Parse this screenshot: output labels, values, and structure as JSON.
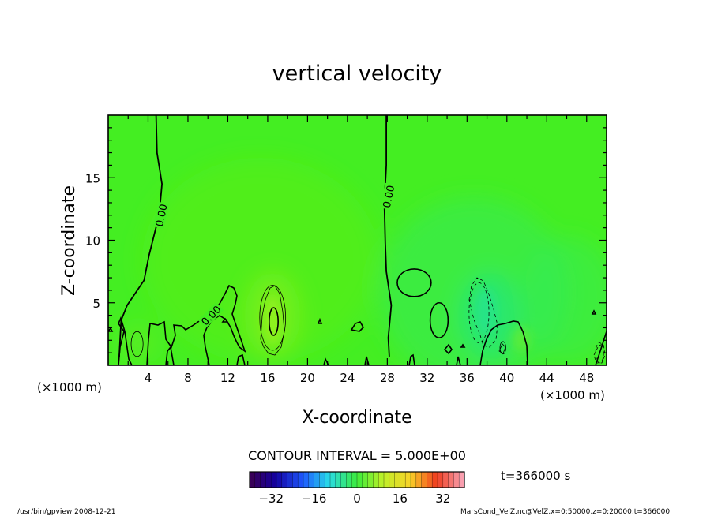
{
  "chart_data": {
    "type": "heatmap",
    "title": "vertical velocity",
    "xlabel": "X-coordinate",
    "ylabel": "Z-coordinate",
    "x_unit_label": "(×1000 m)",
    "xlim": [
      0,
      50
    ],
    "ylim": [
      0,
      20
    ],
    "x_ticks": [
      4,
      8,
      12,
      16,
      20,
      24,
      28,
      32,
      36,
      40,
      44,
      48
    ],
    "y_ticks": [
      5,
      10,
      15
    ],
    "contour_interval_text": "CONTOUR INTERVAL = 5.000E+00",
    "contour_labels": [
      {
        "text": "0.00",
        "x": 5.3,
        "z": 12.0
      },
      {
        "text": "0.00",
        "x": 28.1,
        "z": 13.5
      },
      {
        "text": "0.00",
        "x": 10.3,
        "z": 4.0
      }
    ],
    "zero_contours": [
      [
        [
          4.8,
          20
        ],
        [
          4.9,
          17
        ],
        [
          5.4,
          14.5
        ],
        [
          5.1,
          12
        ],
        [
          4.1,
          8.8
        ],
        [
          3.6,
          6.8
        ],
        [
          1.9,
          4.8
        ],
        [
          1.3,
          3.6
        ],
        [
          1.1,
          0.7
        ]
      ],
      [
        [
          27.9,
          20
        ],
        [
          27.9,
          16
        ],
        [
          27.7,
          13
        ],
        [
          27.8,
          9.8
        ],
        [
          27.9,
          7.5
        ],
        [
          28.4,
          4.8
        ],
        [
          28.1,
          2.2
        ],
        [
          28.2,
          0.7
        ]
      ]
    ],
    "closed_contours": [
      {
        "cx": 30.7,
        "cz": 6.6,
        "rx": 1.7,
        "rz": 1.1,
        "style": "solid"
      },
      {
        "cx": 33.2,
        "cz": 3.6,
        "rx": 0.9,
        "rz": 1.4,
        "style": "solid"
      },
      {
        "cx": 16.5,
        "cz": 3.8,
        "rx": 1.3,
        "rz": 2.6,
        "style": "thin"
      },
      {
        "cx": 16.6,
        "cz": 3.5,
        "rx": 0.45,
        "rz": 1.1,
        "style": "solid"
      },
      {
        "cx": 2.9,
        "cz": 1.7,
        "rx": 0.6,
        "rz": 1.0,
        "style": "thin"
      },
      {
        "cx": 37.2,
        "cz": 4.2,
        "rx": 1.0,
        "rz": 2.4,
        "style": "dashed"
      },
      {
        "cx": 39.6,
        "cz": 1.4,
        "rx": 0.3,
        "rz": 0.5,
        "style": "thin"
      },
      {
        "cx": 49.3,
        "cz": 1.0,
        "rx": 0.4,
        "rz": 0.8,
        "style": "dashed"
      }
    ],
    "colorbar": {
      "min": -40,
      "max": 40,
      "tick_labels": [
        "−32",
        "−16",
        "0",
        "16",
        "32"
      ],
      "tick_values": [
        -32,
        -16,
        0,
        16,
        32
      ]
    },
    "colors": {
      "background_field": "#44ee22",
      "contour_line": "#000000"
    }
  },
  "time_label": "t=366000 s",
  "footer_left": "/usr/bin/gpview  2008-12-21",
  "footer_right": "MarsCond_VelZ.nc@VelZ,x=0:50000,z=0:20000,t=366000"
}
